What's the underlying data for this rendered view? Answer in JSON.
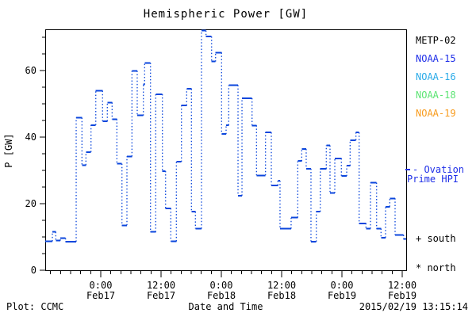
{
  "title": "Hemispheric Power [GW]",
  "footer": {
    "plot_credit": "Plot: CCMC",
    "xaxis_title": "Date and Time",
    "timestamp": "2015/02/19 13:15:14"
  },
  "legend": {
    "satellites": [
      {
        "label": "METP-02",
        "color": "#000000"
      },
      {
        "label": "NOAA-15",
        "color": "#1f2fe8"
      },
      {
        "label": "NOAA-16",
        "color": "#2aabe8"
      },
      {
        "label": "NOAA-18",
        "color": "#5ce473"
      },
      {
        "label": "NOAA-19",
        "color": "#f89b1c"
      }
    ],
    "line_sample_color": "#1f2fe8",
    "ovation_line1": "- Ovation",
    "ovation_line2": "Prime HPI",
    "south_label": "+ south",
    "north_label": "* north"
  },
  "chart_data": {
    "type": "line",
    "subtype": "step-line-dotted-risers",
    "title": "Hemispheric Power [GW]",
    "xlabel": "Date and Time",
    "ylabel": "P [GW]",
    "line_color": "#0b46dc",
    "ylim": [
      0,
      72.4
    ],
    "y_ticks": [
      0,
      20,
      40,
      60
    ],
    "y_minor_step": 5,
    "x_hours_range": [
      -11.05,
      60.8
    ],
    "x_minor_step_hours": 2,
    "x_ticks": [
      {
        "t": 0,
        "time": "0:00",
        "date": "Feb17"
      },
      {
        "t": 12,
        "time": "12:00",
        "date": "Feb17"
      },
      {
        "t": 24,
        "time": "0:00",
        "date": "Feb18"
      },
      {
        "t": 36,
        "time": "12:00",
        "date": "Feb18"
      },
      {
        "t": 48,
        "time": "0:00",
        "date": "Feb19"
      },
      {
        "t": 60,
        "time": "12:00",
        "date": "Feb19"
      }
    ],
    "segments_comment": "each item = [t_start_hours_from_Feb17_00:00, t_end_hours, P_GW]",
    "segments": [
      [
        -11.05,
        -9.63,
        8.7
      ],
      [
        -9.63,
        -8.95,
        11.5
      ],
      [
        -8.95,
        -8.05,
        8.9
      ],
      [
        -8.05,
        -7.0,
        9.6
      ],
      [
        -7.0,
        -4.89,
        8.6
      ],
      [
        -4.89,
        -3.74,
        45.8
      ],
      [
        -3.74,
        -2.95,
        31.6
      ],
      [
        -2.95,
        -1.94,
        35.5
      ],
      [
        -1.94,
        -0.99,
        43.6
      ],
      [
        -0.99,
        0.36,
        53.9
      ],
      [
        0.36,
        1.31,
        44.8
      ],
      [
        1.31,
        2.26,
        50.4
      ],
      [
        2.26,
        3.21,
        45.4
      ],
      [
        3.21,
        4.22,
        32.0
      ],
      [
        4.22,
        5.21,
        13.5
      ],
      [
        5.21,
        6.21,
        34.2
      ],
      [
        6.21,
        7.26,
        59.9
      ],
      [
        7.26,
        8.48,
        46.5
      ],
      [
        8.48,
        8.73,
        55.8
      ],
      [
        8.73,
        9.9,
        62.3
      ],
      [
        9.9,
        10.94,
        11.5
      ],
      [
        10.94,
        12.27,
        52.9
      ],
      [
        12.27,
        12.9,
        29.8
      ],
      [
        12.9,
        13.94,
        18.6
      ],
      [
        13.94,
        15.05,
        8.7
      ],
      [
        15.05,
        16.06,
        32.6
      ],
      [
        16.06,
        17.1,
        49.5
      ],
      [
        17.1,
        18.05,
        54.5
      ],
      [
        18.05,
        18.84,
        17.6
      ],
      [
        18.84,
        20.05,
        12.5
      ],
      [
        20.05,
        20.95,
        72.0
      ],
      [
        20.95,
        22.06,
        70.2
      ],
      [
        22.06,
        22.85,
        62.7
      ],
      [
        22.85,
        24.05,
        65.4
      ],
      [
        24.05,
        24.95,
        40.9
      ],
      [
        24.95,
        25.47,
        43.6
      ],
      [
        25.47,
        27.32,
        55.6
      ],
      [
        27.32,
        28.11,
        22.4
      ],
      [
        28.11,
        30.11,
        51.7
      ],
      [
        30.11,
        31.0,
        43.5
      ],
      [
        31.0,
        32.79,
        28.5
      ],
      [
        32.79,
        33.95,
        41.4
      ],
      [
        33.95,
        35.26,
        25.5
      ],
      [
        35.26,
        35.68,
        26.9
      ],
      [
        35.68,
        37.89,
        12.5
      ],
      [
        37.89,
        39.21,
        15.8
      ],
      [
        39.21,
        40.0,
        32.8
      ],
      [
        40.0,
        40.89,
        36.4
      ],
      [
        40.89,
        41.84,
        30.5
      ],
      [
        41.84,
        42.9,
        8.6
      ],
      [
        42.9,
        43.69,
        17.6
      ],
      [
        43.69,
        44.89,
        30.5
      ],
      [
        44.89,
        45.63,
        37.5
      ],
      [
        45.63,
        46.58,
        23.2
      ],
      [
        46.58,
        47.89,
        33.6
      ],
      [
        47.89,
        48.95,
        28.3
      ],
      [
        48.95,
        49.63,
        31.4
      ],
      [
        49.63,
        50.79,
        39.1
      ],
      [
        50.79,
        51.42,
        41.4
      ],
      [
        51.42,
        52.78,
        14.1
      ],
      [
        52.78,
        53.68,
        12.5
      ],
      [
        53.68,
        54.9,
        26.3
      ],
      [
        54.9,
        55.78,
        12.5
      ],
      [
        55.78,
        56.68,
        9.8
      ],
      [
        56.68,
        57.52,
        19.1
      ],
      [
        57.52,
        58.58,
        21.6
      ],
      [
        58.58,
        60.27,
        10.6
      ],
      [
        60.27,
        60.79,
        9.4
      ]
    ],
    "legend_entries": [
      "METP-02",
      "NOAA-15",
      "NOAA-16",
      "NOAA-18",
      "NOAA-19"
    ],
    "legend_position": "right",
    "grid": false
  }
}
